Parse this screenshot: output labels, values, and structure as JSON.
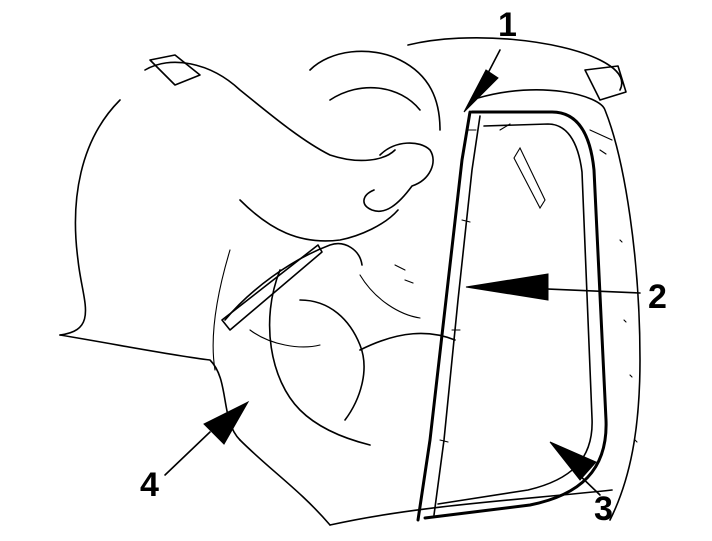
{
  "figure": {
    "callouts": [
      {
        "id": "1",
        "label": "1"
      },
      {
        "id": "2",
        "label": "2"
      },
      {
        "id": "3",
        "label": "3"
      },
      {
        "id": "4",
        "label": "4"
      }
    ],
    "colors": {
      "ink": "#000000",
      "paper": "#ffffff"
    }
  }
}
